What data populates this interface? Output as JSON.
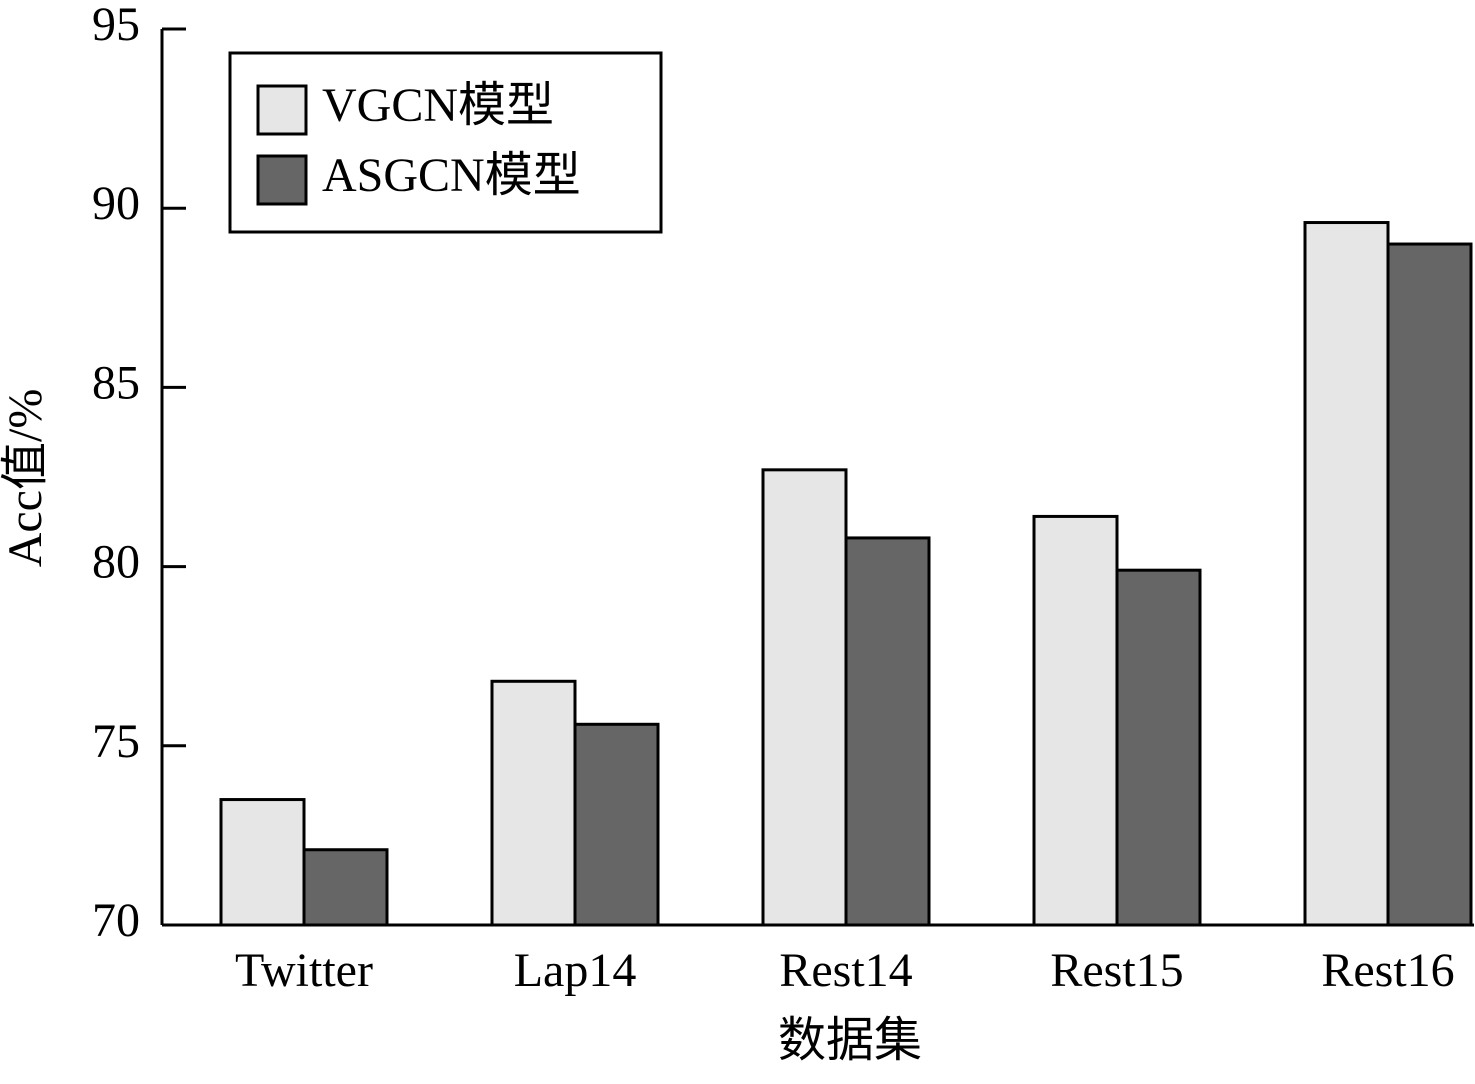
{
  "chart_data": {
    "type": "bar",
    "xlabel": "数据集",
    "ylabel": "Acc值/%",
    "categories": [
      "Twitter",
      "Lap14",
      "Rest14",
      "Rest15",
      "Rest16"
    ],
    "series": [
      {
        "name": "VGCN模型",
        "color": "#e6e6e6",
        "values": [
          73.5,
          76.8,
          82.7,
          81.4,
          89.6
        ]
      },
      {
        "name": "ASGCN模型",
        "color": "#666666",
        "values": [
          72.1,
          75.6,
          80.8,
          79.9,
          89.0
        ]
      }
    ],
    "ylim": [
      70,
      95
    ],
    "yticks": [
      70,
      75,
      80,
      85,
      90,
      95
    ],
    "grid": false,
    "legend": "upper left"
  }
}
